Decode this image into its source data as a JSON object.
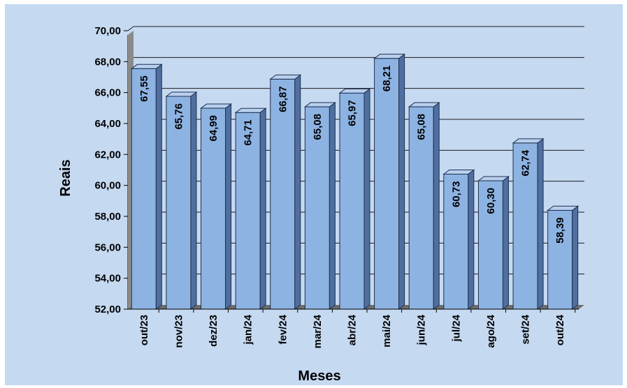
{
  "chart_data": {
    "type": "bar",
    "title": "",
    "xlabel": "Meses",
    "ylabel": "Reais",
    "ylim": [
      52,
      70
    ],
    "y_ticks": [
      "52,00",
      "54,00",
      "56,00",
      "58,00",
      "60,00",
      "62,00",
      "64,00",
      "66,00",
      "68,00",
      "70,00"
    ],
    "categories": [
      "out/23",
      "nov/23",
      "dez/23",
      "jan/24",
      "fev/24",
      "mar/24",
      "abr/24",
      "mai/24",
      "jun/24",
      "jul/24",
      "ago/24",
      "set/24",
      "out/24"
    ],
    "values": [
      67.55,
      65.76,
      64.99,
      64.71,
      66.87,
      65.08,
      65.97,
      68.21,
      65.08,
      60.73,
      60.3,
      62.74,
      58.39
    ],
    "value_labels": [
      "67,55",
      "65,76",
      "64,99",
      "64,71",
      "66,87",
      "65,08",
      "65,97",
      "68,21",
      "65,08",
      "60,73",
      "60,30",
      "62,74",
      "58,39"
    ],
    "grid": true,
    "style": "3d-bar",
    "colors": {
      "background": "#c5d9f1",
      "bar_front": "#8db3e2",
      "bar_top": "#b8d0ee",
      "bar_side": "#4f6fa0",
      "wall": "#8a8a8a",
      "floor": "#6d6d6d",
      "gridline": "#1a1a1a"
    }
  }
}
